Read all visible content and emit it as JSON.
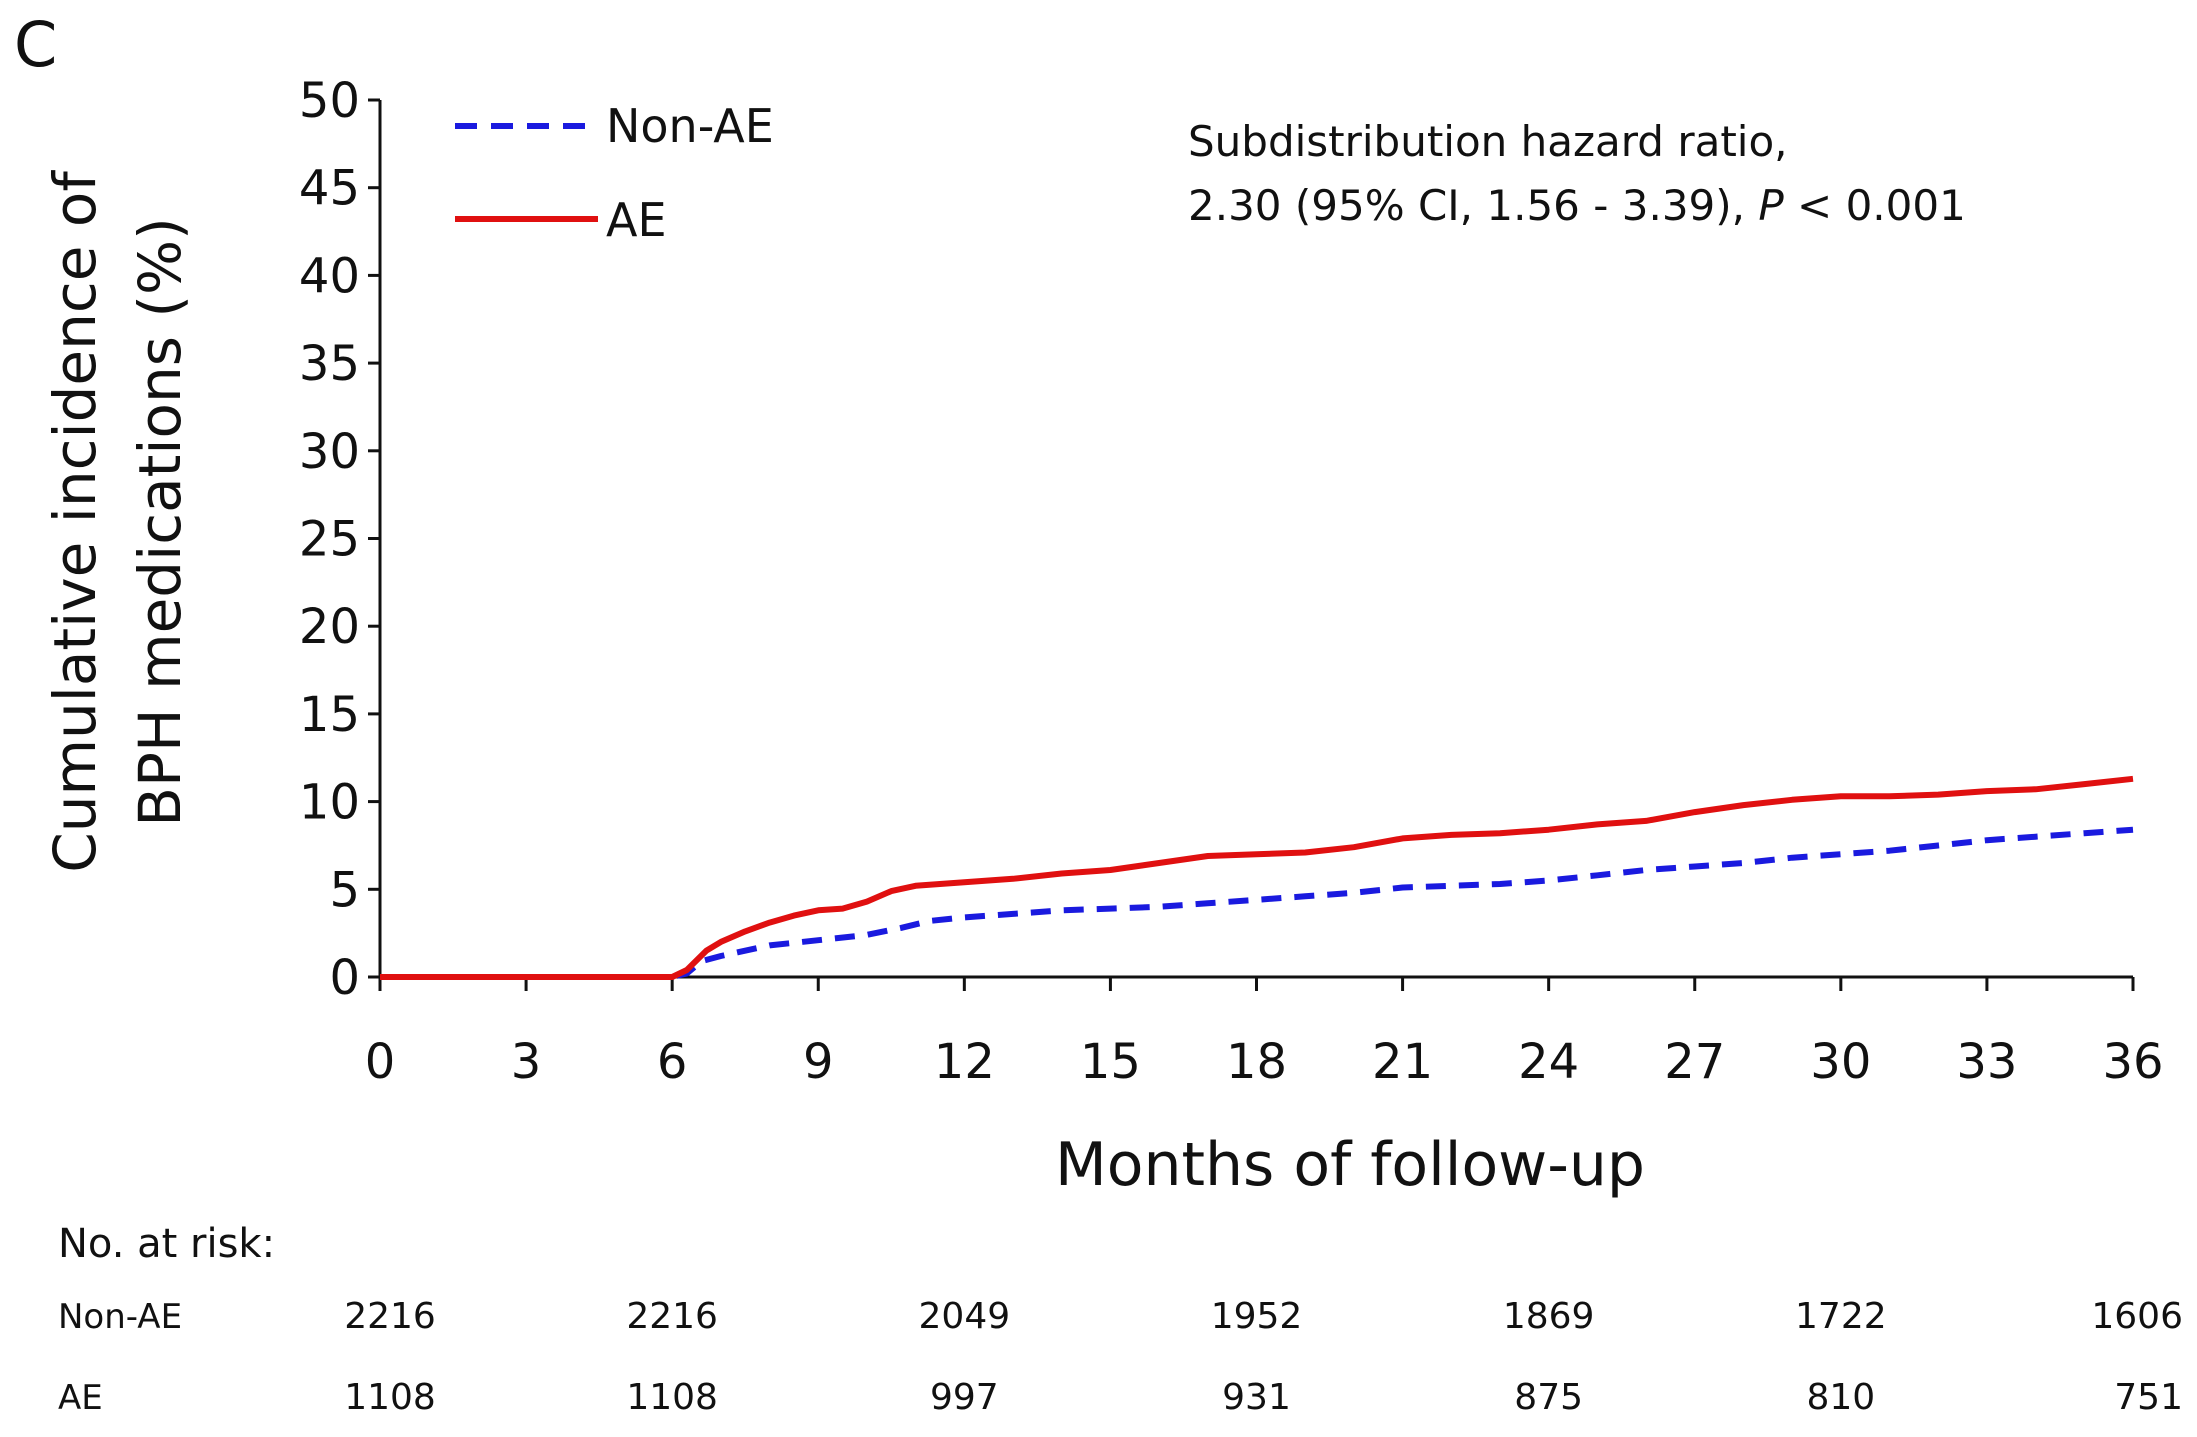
{
  "panel_label": "C",
  "chart_data": {
    "type": "line",
    "title": "",
    "xlabel": "Months of follow-up",
    "ylabel": [
      "Cumulative incidence of",
      "BPH medications (%)"
    ],
    "xlim": [
      0,
      36
    ],
    "ylim": [
      0,
      50
    ],
    "xticks": [
      "0",
      "3",
      "6",
      "9",
      "12",
      "15",
      "18",
      "21",
      "24",
      "27",
      "30",
      "33",
      "36"
    ],
    "yticks": [
      "0",
      "5",
      "10",
      "15",
      "20",
      "25",
      "30",
      "35",
      "40",
      "45",
      "50"
    ],
    "grid": false,
    "legend_position": "top-left",
    "annotation": {
      "line1": "Subdistribution hazard ratio,",
      "line2_prefix": "2.30 (95% CI, 1.56 - 3.39), ",
      "line2_p": "P",
      "line2_suffix": " < 0.001"
    },
    "series": [
      {
        "name": "Non-AE",
        "color": "#1a1adf",
        "style": "dashed",
        "points": [
          [
            0,
            0
          ],
          [
            6,
            0
          ],
          [
            6.3,
            0.2
          ],
          [
            6.6,
            0.9
          ],
          [
            7,
            1.2
          ],
          [
            8,
            1.8
          ],
          [
            9,
            2.1
          ],
          [
            10,
            2.4
          ],
          [
            10.7,
            2.8
          ],
          [
            11.3,
            3.2
          ],
          [
            12,
            3.4
          ],
          [
            13,
            3.6
          ],
          [
            14,
            3.8
          ],
          [
            15,
            3.9
          ],
          [
            16,
            4.0
          ],
          [
            17,
            4.2
          ],
          [
            18,
            4.4
          ],
          [
            19,
            4.6
          ],
          [
            20,
            4.8
          ],
          [
            21,
            5.1
          ],
          [
            22,
            5.2
          ],
          [
            23,
            5.3
          ],
          [
            24,
            5.5
          ],
          [
            25,
            5.8
          ],
          [
            26,
            6.1
          ],
          [
            27,
            6.3
          ],
          [
            28,
            6.5
          ],
          [
            29,
            6.8
          ],
          [
            30,
            7.0
          ],
          [
            31,
            7.2
          ],
          [
            32,
            7.5
          ],
          [
            33,
            7.8
          ],
          [
            34,
            8.0
          ],
          [
            35,
            8.2
          ],
          [
            36,
            8.4
          ]
        ]
      },
      {
        "name": "AE",
        "color": "#e01010",
        "style": "solid",
        "points": [
          [
            0,
            0
          ],
          [
            6,
            0
          ],
          [
            6.3,
            0.4
          ],
          [
            6.7,
            1.5
          ],
          [
            7,
            2.0
          ],
          [
            7.5,
            2.6
          ],
          [
            8,
            3.1
          ],
          [
            8.5,
            3.5
          ],
          [
            9,
            3.8
          ],
          [
            9.5,
            3.9
          ],
          [
            10,
            4.3
          ],
          [
            10.5,
            4.9
          ],
          [
            11,
            5.2
          ],
          [
            12,
            5.4
          ],
          [
            13,
            5.6
          ],
          [
            14,
            5.9
          ],
          [
            15,
            6.1
          ],
          [
            16,
            6.5
          ],
          [
            17,
            6.9
          ],
          [
            18,
            7.0
          ],
          [
            19,
            7.1
          ],
          [
            20,
            7.4
          ],
          [
            21,
            7.9
          ],
          [
            22,
            8.1
          ],
          [
            23,
            8.2
          ],
          [
            24,
            8.4
          ],
          [
            25,
            8.7
          ],
          [
            26,
            8.9
          ],
          [
            27,
            9.4
          ],
          [
            28,
            9.8
          ],
          [
            29,
            10.1
          ],
          [
            30,
            10.3
          ],
          [
            31,
            10.3
          ],
          [
            32,
            10.4
          ],
          [
            33,
            10.6
          ],
          [
            34,
            10.7
          ],
          [
            35,
            11.0
          ],
          [
            36,
            11.3
          ]
        ]
      }
    ]
  },
  "risk_table": {
    "header": "No. at risk:",
    "months": [
      0,
      6,
      12,
      18,
      24,
      30,
      36
    ],
    "rows": [
      {
        "label": "Non-AE",
        "values": [
          "2216",
          "2216",
          "2049",
          "1952",
          "1869",
          "1722",
          "1606"
        ]
      },
      {
        "label": "AE",
        "values": [
          "1108",
          "1108",
          "997",
          "931",
          "875",
          "810",
          "751"
        ]
      }
    ]
  }
}
